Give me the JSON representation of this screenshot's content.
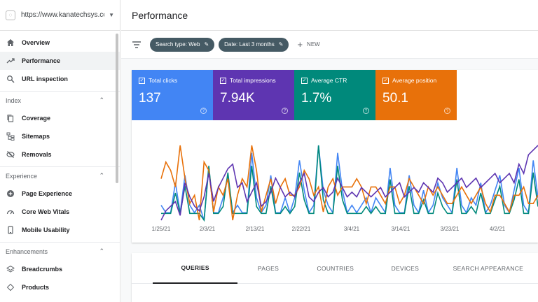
{
  "property": {
    "url": "https://www.kanatechsys.co..."
  },
  "sidebar": {
    "items_top": [
      {
        "label": "Overview",
        "icon": "home-icon"
      },
      {
        "label": "Performance",
        "icon": "trending-icon",
        "active": true
      },
      {
        "label": "URL inspection",
        "icon": "search-icon"
      }
    ],
    "sections": [
      {
        "title": "Index",
        "items": [
          {
            "label": "Coverage",
            "icon": "file-copy-icon"
          },
          {
            "label": "Sitemaps",
            "icon": "sitemap-icon"
          },
          {
            "label": "Removals",
            "icon": "eye-off-icon"
          }
        ]
      },
      {
        "title": "Experience",
        "items": [
          {
            "label": "Page Experience",
            "icon": "add-circle-icon"
          },
          {
            "label": "Core Web Vitals",
            "icon": "speed-icon"
          },
          {
            "label": "Mobile Usability",
            "icon": "phone-icon"
          }
        ]
      },
      {
        "title": "Enhancements",
        "items": [
          {
            "label": "Breadcrumbs",
            "icon": "layers-icon"
          },
          {
            "label": "Products",
            "icon": "diamond-icon"
          }
        ]
      }
    ]
  },
  "header": {
    "title": "Performance"
  },
  "filters": {
    "chips": [
      "Search type: Web",
      "Date: Last 3 months"
    ],
    "new_label": "NEW"
  },
  "metrics": [
    {
      "label": "Total clicks",
      "value": "137",
      "color": "#4285f4"
    },
    {
      "label": "Total impressions",
      "value": "7.94K",
      "color": "#5e35b1"
    },
    {
      "label": "Average CTR",
      "value": "1.7%",
      "color": "#00897b"
    },
    {
      "label": "Average position",
      "value": "50.1",
      "color": "#e8710a"
    }
  ],
  "tabs": [
    "QUERIES",
    "PAGES",
    "COUNTRIES",
    "DEVICES",
    "SEARCH APPEARANCE"
  ],
  "chart_data": {
    "type": "line",
    "x_tick_labels": [
      "1/25/21",
      "2/3/21",
      "2/13/21",
      "2/22/21",
      "3/4/21",
      "3/14/21",
      "3/23/21",
      "4/2/21"
    ],
    "series": [
      {
        "color": "#4285f4",
        "values": [
          2,
          1,
          1,
          5,
          1,
          6,
          2,
          1,
          2,
          0,
          7,
          1,
          1,
          3,
          6,
          1,
          2,
          1,
          1,
          9,
          3,
          1,
          2,
          6,
          1,
          1,
          3,
          1,
          3,
          8,
          4,
          1,
          2,
          10,
          4,
          2,
          1,
          9,
          4,
          1,
          2,
          1,
          2,
          3,
          1,
          3,
          2,
          1,
          7,
          2,
          1,
          1,
          6,
          2,
          1,
          4,
          1,
          2,
          5,
          3,
          2,
          1,
          7,
          2,
          1,
          3,
          2,
          5,
          1,
          2,
          4,
          6,
          2,
          1,
          4,
          7,
          2,
          1,
          8,
          3
        ]
      },
      {
        "color": "#00897b",
        "values": [
          1,
          1,
          1,
          4,
          1,
          5,
          1,
          1,
          1,
          0,
          8,
          1,
          1,
          2,
          7,
          1,
          1,
          1,
          1,
          8,
          2,
          1,
          1,
          5,
          1,
          1,
          2,
          1,
          2,
          7,
          3,
          1,
          1,
          11,
          3,
          1,
          1,
          8,
          3,
          1,
          1,
          1,
          1,
          2,
          1,
          2,
          1,
          1,
          6,
          1,
          1,
          1,
          5,
          1,
          1,
          3,
          1,
          1,
          4,
          2,
          1,
          1,
          6,
          1,
          1,
          2,
          1,
          4,
          1,
          1,
          3,
          5,
          1,
          1,
          3,
          6,
          1,
          1,
          7,
          2
        ]
      },
      {
        "color": "#e8710a",
        "values": [
          48,
          50,
          49,
          47,
          52,
          48,
          45,
          46,
          43,
          50,
          49,
          44,
          47,
          46,
          48,
          43,
          46,
          48,
          47,
          52,
          49,
          44,
          46,
          48,
          45,
          47,
          48,
          46,
          46,
          47,
          49,
          48,
          46,
          47,
          44,
          47,
          48,
          46,
          47,
          47,
          47,
          48,
          47,
          45,
          47,
          47,
          46,
          45,
          47,
          47,
          45,
          46,
          48,
          47,
          46,
          45,
          47,
          46,
          47,
          46,
          45,
          45,
          46,
          47,
          46,
          45,
          46,
          47,
          45,
          44,
          46,
          46,
          45,
          44,
          46,
          46,
          47,
          45,
          45,
          46
        ]
      },
      {
        "color": "#5e35b1",
        "values": [
          20,
          30,
          35,
          40,
          25,
          60,
          45,
          35,
          30,
          45,
          70,
          40,
          55,
          65,
          75,
          80,
          55,
          60,
          40,
          50,
          60,
          35,
          40,
          50,
          65,
          55,
          45,
          50,
          45,
          60,
          70,
          45,
          40,
          50,
          55,
          45,
          50,
          65,
          55,
          45,
          50,
          45,
          55,
          50,
          45,
          50,
          55,
          45,
          50,
          55,
          60,
          45,
          50,
          55,
          50,
          60,
          55,
          50,
          65,
          60,
          50,
          55,
          60,
          65,
          55,
          60,
          65,
          55,
          60,
          65,
          70,
          60,
          65,
          70,
          60,
          80,
          70,
          90,
          95,
          100
        ]
      }
    ]
  }
}
